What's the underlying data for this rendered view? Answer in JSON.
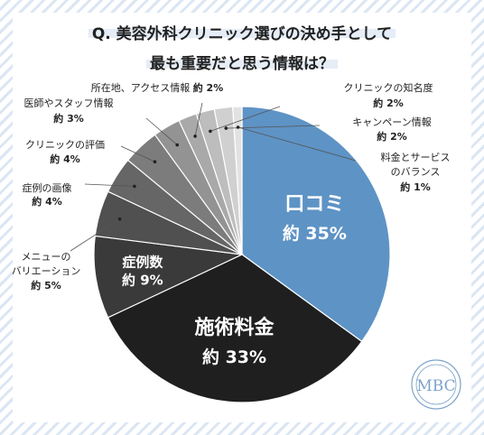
{
  "chart_data": {
    "type": "pie",
    "title_lines": [
      "Q. 美容外科クリニック選びの決め手として",
      "最も重要だと思う情報は？"
    ],
    "slices": [
      {
        "name": "口コミ",
        "value_label": "約 35%",
        "value": 35,
        "color": "#5e93c5"
      },
      {
        "name": "施術料金",
        "value_label": "約 33%",
        "value": 33,
        "color": "#1f1f1f"
      },
      {
        "name": "症例数",
        "value_label": "約 9%",
        "value": 9,
        "color": "#3a3a3a"
      },
      {
        "name_lines": [
          "メニューの",
          "バリエーション"
        ],
        "value_label": "約 5%",
        "value": 5,
        "color": "#505050"
      },
      {
        "name_lines": [
          "症例の画像"
        ],
        "value_label": "約 4%",
        "value": 4,
        "color": "#666666"
      },
      {
        "name_lines": [
          "クリニックの評価"
        ],
        "value_label": "約 4%",
        "value": 4,
        "color": "#7c7c7c"
      },
      {
        "name_lines": [
          "医師やスタッフ情報"
        ],
        "value_label": "約 3%",
        "value": 3,
        "color": "#939393"
      },
      {
        "name_lines": [
          "所在地、アクセス情報"
        ],
        "value_label": "約 2%",
        "value": 2,
        "color": "#a9a9a9"
      },
      {
        "name_lines": [
          "クリニックの知名度"
        ],
        "value_label": "約 2%",
        "value": 2,
        "color": "#bdbdbd"
      },
      {
        "name_lines": [
          "キャンペーン情報"
        ],
        "value_label": "約 2%",
        "value": 2,
        "color": "#d0d0d0"
      },
      {
        "name_lines": [
          "料金とサービス",
          "のバランス"
        ],
        "value_label": "約 1%",
        "value": 1,
        "color": "#e2e2e2"
      }
    ]
  },
  "logo": {
    "text": "MBC",
    "color": "#7ea3c9"
  },
  "colors": {
    "title_highlight": "#e5edf7",
    "leader_line": "#555555",
    "text": "#222222"
  }
}
